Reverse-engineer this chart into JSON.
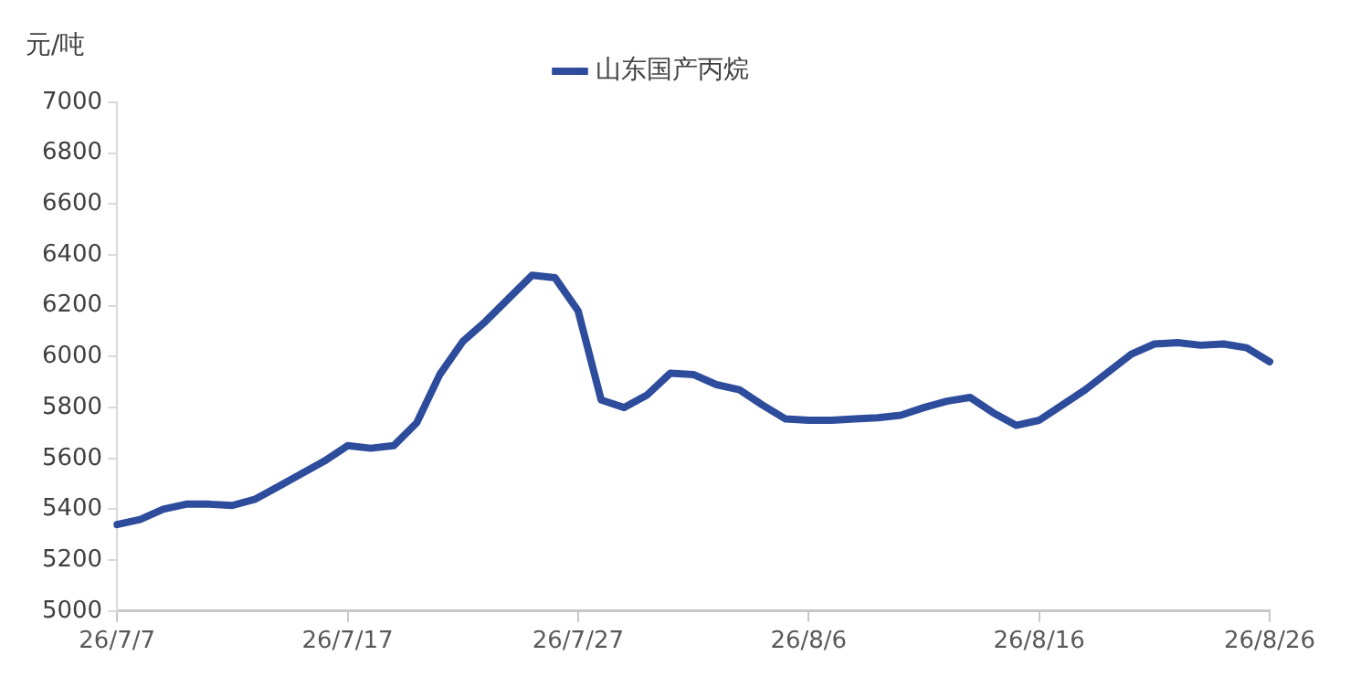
{
  "chart_data": {
    "type": "line",
    "ylabel": "元/吨",
    "categories": [
      "26/7/7",
      null,
      null,
      null,
      null,
      null,
      null,
      null,
      null,
      null,
      "26/7/17",
      null,
      null,
      null,
      null,
      null,
      null,
      null,
      null,
      null,
      "26/7/27",
      null,
      null,
      null,
      null,
      null,
      null,
      null,
      null,
      null,
      "26/8/6",
      null,
      null,
      null,
      null,
      null,
      null,
      null,
      null,
      null,
      "26/8/16",
      null,
      null,
      null,
      null,
      null,
      null,
      null,
      null,
      null,
      "26/8/26"
    ],
    "series": [
      {
        "name": "山东国产丙烷",
        "color": "#2e4c9c",
        "values": [
          5340,
          5360,
          5400,
          5420,
          5420,
          5415,
          5440,
          5490,
          5540,
          5590,
          5650,
          5640,
          5650,
          5740,
          5930,
          6060,
          6140,
          6230,
          6320,
          6310,
          6180,
          5830,
          5800,
          5850,
          5935,
          5930,
          5890,
          5870,
          5810,
          5755,
          5750,
          5750,
          5755,
          5760,
          5770,
          5800,
          5825,
          5840,
          5780,
          5730,
          5750,
          5810,
          5870,
          5940,
          6010,
          6050,
          6055,
          6045,
          6050,
          6035,
          5980
        ]
      }
    ],
    "ylim": [
      5000,
      7000
    ],
    "yticks": [
      5000,
      5200,
      5400,
      5600,
      5800,
      6000,
      6200,
      6400,
      6600,
      6800,
      7000
    ],
    "grid": false,
    "legend": "top",
    "marker": "none",
    "line_style": "solid"
  }
}
